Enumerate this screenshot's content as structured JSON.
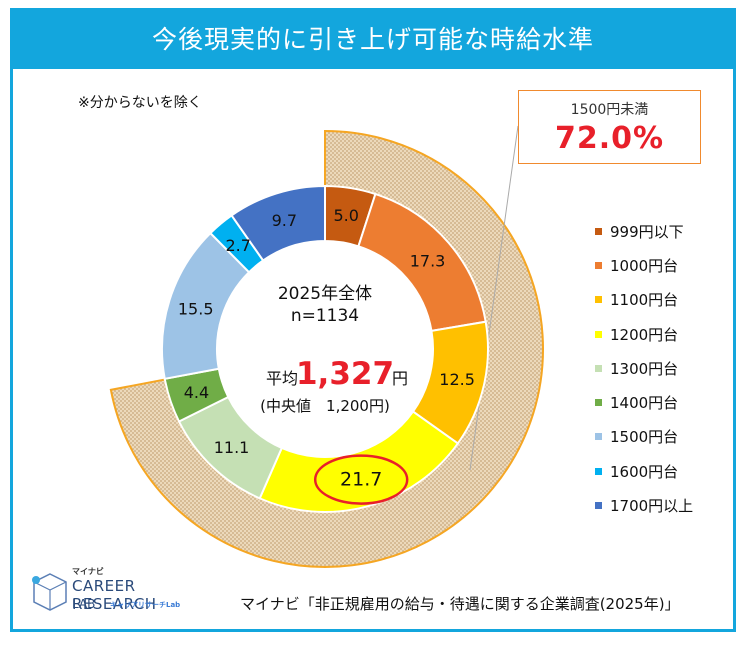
{
  "header": {
    "title": "今後現実的に引き上げ可能な時給水準"
  },
  "note": "※分からないを除く",
  "callout": {
    "label": "1500円未満",
    "value": "72.0%"
  },
  "center": {
    "line1": "2025年全体",
    "line2": "n=1134",
    "avg_label": "平均",
    "avg_value": "1,327",
    "avg_unit": "円",
    "median": "(中央値　1,200円)"
  },
  "logo": {
    "brand": "マイナビ",
    "line1": "CAREER RESEARCH",
    "line2": "LAB",
    "sub": "キャリアリサーチLab"
  },
  "source": "マイナビ「非正規雇用の給与・待遇に関する企業調査(2025年)」",
  "chart_data": {
    "type": "donut",
    "title": "今後現実的に引き上げ可能な時給水準",
    "unit": "%",
    "categories": [
      "999円以下",
      "1000円台",
      "1100円台",
      "1200円台",
      "1300円台",
      "1400円台",
      "1500円台",
      "1600円台",
      "1700円以上"
    ],
    "values": [
      5.0,
      17.3,
      12.5,
      21.7,
      11.1,
      4.4,
      15.5,
      2.7,
      9.7
    ],
    "labels": [
      "5.0",
      "17.3",
      "12.5",
      "21.7",
      "11.1",
      "4.4",
      "15.5",
      "2.7",
      "9.7"
    ],
    "colors": [
      "#c55a11",
      "#ed7d31",
      "#ffc000",
      "#ffff00",
      "#c5e0b4",
      "#70ad47",
      "#9dc3e6",
      "#00b0f0",
      "#4472c4"
    ],
    "highlight_index": 3,
    "highlight_color": "#e8202a",
    "outer_band": {
      "label": "1500円未満",
      "value": 72.0,
      "fill": "#e0c9a6",
      "stroke": "#f5a623"
    },
    "legend_position": "right"
  }
}
